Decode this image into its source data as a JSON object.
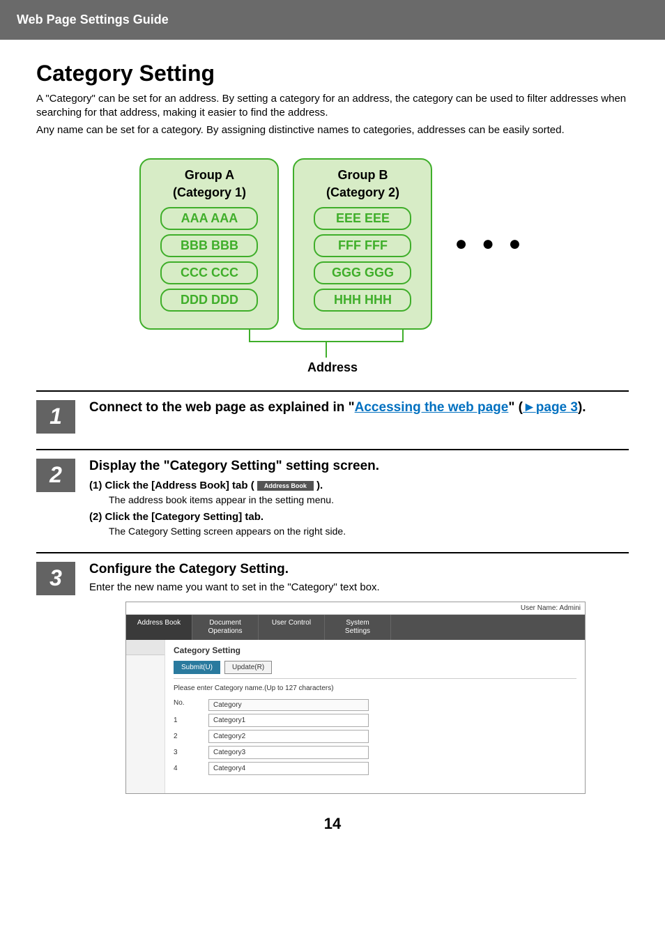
{
  "header": {
    "title": "Web Page Settings Guide"
  },
  "main": {
    "heading": "Category Setting",
    "intro1": "A \"Category\" can be set for an address. By setting a category for an address, the category can be used to filter addresses when searching for that address, making it easier to find the address.",
    "intro2": "Any name can be set for a category. By assigning distinctive names to categories, addresses can be easily sorted."
  },
  "diagram": {
    "groupA": {
      "title": "Group A",
      "subtitle": "(Category 1)",
      "items": [
        "AAA AAA",
        "BBB BBB",
        "CCC CCC",
        "DDD DDD"
      ]
    },
    "groupB": {
      "title": "Group B",
      "subtitle": "(Category 2)",
      "items": [
        "EEE EEE",
        "FFF FFF",
        "GGG GGG",
        "HHH HHH"
      ]
    },
    "dots": "● ● ●",
    "addressLabel": "Address",
    "colors": {
      "border": "#3fae2a",
      "fill": "#d7ecc6"
    }
  },
  "steps": {
    "s1": {
      "num": "1",
      "pre": "Connect to the web page as explained in \"",
      "link": "Accessing the web page",
      "mid": "\" (",
      "arrow": "►",
      "page": "page 3",
      "post": ")."
    },
    "s2": {
      "num": "2",
      "title": "Display the \"Category Setting\" setting screen.",
      "item1_label": "(1)  Click the [Address Book] tab (",
      "item1_chip": "Address Book",
      "item1_close": ").",
      "item1_desc": "The address book items appear in the setting menu.",
      "item2_label": "(2)  Click the [Category Setting] tab.",
      "item2_desc": "The Category Setting screen appears on the right side."
    },
    "s3": {
      "num": "3",
      "title": "Configure the Category Setting.",
      "desc": "Enter the new name you want to set in the \"Category\" text box."
    }
  },
  "screenshot": {
    "userLabel": "User Name: Admini",
    "tabs": {
      "addressBook": "Address Book",
      "docOps": "Document\nOperations",
      "userControl": "User Control",
      "system": "System\nSettings"
    },
    "panelTitle": "Category Setting",
    "submit": "Submit(U)",
    "update": "Update(R)",
    "note": "Please enter Category name.(Up to 127 characters)",
    "colNo": "No.",
    "colCat": "Category",
    "rows": [
      {
        "no": "1",
        "val": "Category1"
      },
      {
        "no": "2",
        "val": "Category2"
      },
      {
        "no": "3",
        "val": "Category3"
      },
      {
        "no": "4",
        "val": "Category4"
      }
    ]
  },
  "pageNumber": "14"
}
